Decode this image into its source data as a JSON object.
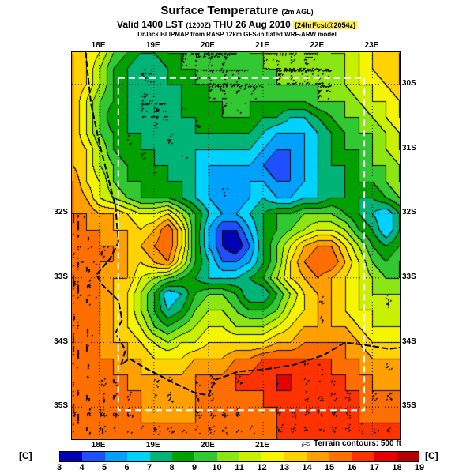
{
  "header": {
    "title": "Surface Temperature",
    "title_suffix": "(2m AGL)",
    "valid_main": "Valid 1400 LST",
    "valid_zulu": "(1200Z)",
    "valid_date": "THU 26 Aug 2010",
    "fcst_tag": "[24hrFcst@2054z]",
    "model_line": "DrJack BLIPMAP from RASP 12km GFS-initiated WRF-ARW model"
  },
  "map": {
    "top_labels": [
      "18E",
      "19E",
      "20E",
      "21E",
      "22E",
      "23E"
    ],
    "bottom_labels": [
      "18E",
      "19E",
      "20E",
      "21E"
    ],
    "left_labels": [
      "32S",
      "33S",
      "34S",
      "35S"
    ],
    "right_labels": [
      "30S",
      "31S",
      "32S",
      "33S",
      "34S",
      "35S"
    ],
    "terrain_note": "Terrain contours: 500 ft"
  },
  "colorbar": {
    "unit_label": "[C]",
    "ticks": [
      3,
      4,
      5,
      6,
      7,
      8,
      9,
      10,
      11,
      12,
      13,
      14,
      15,
      16,
      17,
      18,
      19
    ],
    "colors": [
      "#0000b4",
      "#1e50ff",
      "#00a0ff",
      "#00d2ff",
      "#00b478",
      "#00a000",
      "#32c832",
      "#8ce614",
      "#c8f000",
      "#f5f500",
      "#ffd200",
      "#ffa000",
      "#ff6e00",
      "#ff3200",
      "#e60000",
      "#b40000"
    ]
  },
  "chart_data": {
    "type": "heatmap",
    "title": "Surface Temperature (2m AGL)",
    "units": "C",
    "legend_position": "bottom",
    "lon_range": [
      17.5,
      23.5
    ],
    "lat_range": [
      29.5,
      35.5
    ],
    "lon_ticks": [
      18,
      19,
      20,
      21,
      22,
      23
    ],
    "lat_ticks": [
      30,
      31,
      32,
      33,
      34,
      35
    ],
    "levels": [
      3,
      4,
      5,
      6,
      7,
      8,
      9,
      10,
      11,
      12,
      13,
      14,
      15,
      16,
      17,
      18,
      19
    ],
    "palette": [
      "#0000b4",
      "#1e50ff",
      "#00a0ff",
      "#00d2ff",
      "#00b478",
      "#00a000",
      "#32c832",
      "#8ce614",
      "#c8f000",
      "#f5f500",
      "#ffd200",
      "#ffa000",
      "#ff6e00",
      "#ff3200",
      "#e60000",
      "#b40000"
    ],
    "inner_domain": {
      "lon": [
        18.35,
        22.85
      ],
      "lat": [
        29.9,
        35.05
      ]
    },
    "grid": {
      "lon_start": 17.5,
      "lon_step": 0.25,
      "lat_start": 29.5,
      "lat_step": 0.25,
      "values": [
        [
          14,
          13,
          12,
          10,
          9,
          8,
          8,
          9,
          9,
          9,
          9,
          9,
          9,
          10,
          10,
          10,
          10,
          10,
          10,
          11,
          11,
          12,
          13,
          13,
          14
        ],
        [
          14,
          13,
          11,
          9,
          8,
          7,
          7,
          8,
          9,
          9,
          9,
          9,
          9,
          9,
          10,
          10,
          10,
          10,
          10,
          10,
          11,
          12,
          13,
          14,
          14
        ],
        [
          14,
          13,
          11,
          9,
          8,
          7,
          7,
          8,
          8,
          9,
          9,
          9,
          9,
          9,
          9,
          10,
          10,
          10,
          10,
          10,
          11,
          12,
          12,
          13,
          14
        ],
        [
          14,
          12,
          10,
          9,
          8,
          7,
          7,
          7,
          8,
          8,
          9,
          9,
          9,
          9,
          9,
          9,
          9,
          9,
          10,
          10,
          10,
          11,
          12,
          12,
          13
        ],
        [
          14,
          12,
          10,
          8,
          8,
          7,
          7,
          7,
          8,
          8,
          8,
          9,
          9,
          9,
          8,
          8,
          7,
          7,
          8,
          9,
          10,
          10,
          11,
          12,
          13
        ],
        [
          14,
          12,
          10,
          9,
          8,
          8,
          7,
          7,
          7,
          8,
          8,
          8,
          8,
          8,
          7,
          6,
          6,
          6,
          7,
          8,
          9,
          10,
          10,
          11,
          12
        ],
        [
          14,
          13,
          11,
          9,
          8,
          8,
          8,
          7,
          7,
          7,
          7,
          7,
          7,
          7,
          6,
          5,
          5,
          6,
          7,
          8,
          9,
          9,
          10,
          11,
          12
        ],
        [
          14,
          13,
          11,
          10,
          9,
          8,
          8,
          8,
          7,
          7,
          6,
          6,
          6,
          6,
          5,
          4,
          5,
          6,
          7,
          8,
          8,
          9,
          10,
          10,
          11
        ],
        [
          15,
          13,
          12,
          10,
          9,
          9,
          8,
          8,
          8,
          7,
          6,
          5,
          5,
          6,
          6,
          5,
          5,
          6,
          7,
          7,
          8,
          9,
          9,
          10,
          11
        ],
        [
          15,
          14,
          12,
          11,
          10,
          9,
          9,
          9,
          8,
          7,
          6,
          5,
          5,
          6,
          7,
          6,
          6,
          7,
          7,
          8,
          8,
          8,
          8,
          9,
          10
        ],
        [
          15,
          15,
          14,
          14,
          13,
          12,
          12,
          13,
          11,
          9,
          7,
          6,
          6,
          7,
          8,
          9,
          9,
          10,
          10,
          10,
          9,
          8,
          7,
          6,
          8
        ],
        [
          15,
          15,
          15,
          14,
          14,
          13,
          14,
          16,
          13,
          9,
          6,
          4,
          4,
          6,
          8,
          9,
          10,
          11,
          12,
          12,
          11,
          9,
          8,
          6,
          8
        ],
        [
          15,
          15,
          15,
          15,
          14,
          14,
          15,
          16,
          13,
          9,
          6,
          4,
          3,
          5,
          8,
          10,
          12,
          14,
          15,
          15,
          13,
          11,
          9,
          8,
          9
        ],
        [
          15,
          15,
          15,
          15,
          14,
          13,
          14,
          15,
          12,
          9,
          7,
          5,
          5,
          6,
          8,
          10,
          13,
          15,
          16,
          16,
          14,
          12,
          10,
          9,
          10
        ],
        [
          15,
          15,
          15,
          14,
          14,
          12,
          11,
          10,
          9,
          8,
          7,
          7,
          7,
          8,
          9,
          11,
          13,
          14,
          15,
          14,
          13,
          12,
          11,
          10,
          10
        ],
        [
          15,
          15,
          15,
          14,
          13,
          11,
          9,
          6,
          7,
          9,
          10,
          10,
          9,
          7,
          7,
          9,
          11,
          13,
          14,
          14,
          13,
          12,
          11,
          11,
          11
        ],
        [
          15,
          15,
          15,
          14,
          13,
          11,
          9,
          7,
          8,
          10,
          11,
          11,
          10,
          9,
          9,
          10,
          12,
          13,
          14,
          14,
          13,
          12,
          12,
          11,
          11
        ],
        [
          15,
          15,
          15,
          14,
          13,
          12,
          10,
          9,
          10,
          11,
          12,
          12,
          11,
          11,
          11,
          12,
          13,
          14,
          14,
          14,
          14,
          13,
          12,
          12,
          12
        ],
        [
          15,
          15,
          15,
          14,
          14,
          13,
          12,
          11,
          12,
          12,
          13,
          13,
          13,
          13,
          13,
          14,
          14,
          15,
          15,
          15,
          15,
          14,
          13,
          13,
          13
        ],
        [
          15,
          15,
          15,
          15,
          14,
          14,
          13,
          13,
          13,
          14,
          14,
          14,
          15,
          15,
          16,
          16,
          16,
          16,
          16,
          16,
          15,
          15,
          14,
          14,
          14
        ],
        [
          15,
          15,
          15,
          15,
          15,
          14,
          14,
          14,
          14,
          15,
          15,
          15,
          16,
          16,
          17,
          17,
          17,
          16,
          16,
          16,
          16,
          15,
          15,
          14,
          14
        ],
        [
          15,
          15,
          15,
          15,
          15,
          15,
          14,
          14,
          14,
          15,
          15,
          15,
          16,
          16,
          16,
          17,
          17,
          16,
          16,
          16,
          16,
          16,
          15,
          15,
          15
        ],
        [
          15,
          15,
          15,
          15,
          15,
          15,
          14,
          14,
          14,
          15,
          15,
          15,
          15,
          15,
          16,
          16,
          16,
          16,
          16,
          16,
          16,
          16,
          15,
          15,
          15
        ],
        [
          15,
          15,
          15,
          15,
          15,
          15,
          15,
          15,
          15,
          15,
          15,
          15,
          15,
          15,
          15,
          16,
          16,
          16,
          16,
          16,
          16,
          16,
          16,
          16,
          16
        ],
        [
          15,
          15,
          15,
          15,
          15,
          15,
          15,
          15,
          15,
          15,
          15,
          15,
          15,
          15,
          15,
          16,
          16,
          16,
          16,
          16,
          16,
          16,
          16,
          16,
          16
        ]
      ]
    },
    "coastline": [
      [
        17.75,
        29.5
      ],
      [
        17.85,
        30.3
      ],
      [
        18.0,
        30.9
      ],
      [
        18.15,
        31.4
      ],
      [
        18.3,
        31.9
      ],
      [
        18.35,
        32.45
      ],
      [
        18.2,
        32.7
      ],
      [
        17.95,
        32.95
      ],
      [
        18.05,
        33.1
      ],
      [
        18.35,
        33.35
      ],
      [
        18.42,
        33.65
      ],
      [
        18.3,
        33.85
      ],
      [
        18.48,
        34.12
      ],
      [
        18.4,
        34.35
      ],
      [
        18.55,
        34.25
      ],
      [
        18.85,
        34.4
      ],
      [
        19.35,
        34.62
      ],
      [
        19.75,
        34.78
      ],
      [
        20.0,
        34.82
      ],
      [
        20.12,
        34.58
      ],
      [
        20.55,
        34.45
      ],
      [
        21.0,
        34.42
      ],
      [
        21.55,
        34.35
      ],
      [
        22.1,
        34.2
      ],
      [
        22.5,
        34.0
      ],
      [
        22.95,
        34.05
      ],
      [
        23.3,
        34.1
      ],
      [
        23.5,
        34.08
      ]
    ]
  }
}
